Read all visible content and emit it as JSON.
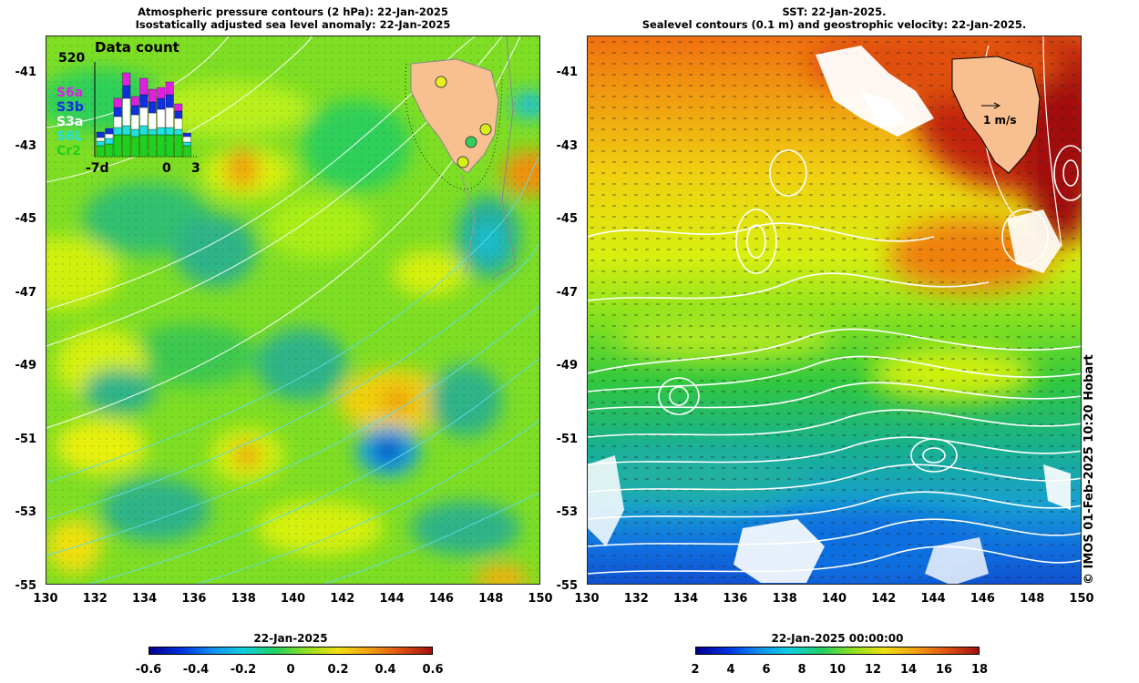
{
  "left_panel": {
    "title_line1": "Atmospheric pressure contours (2 hPa): 22-Jan-2025",
    "title_line2": "Isostatically adjusted sea level anomaly: 22-Jan-2025",
    "y_ticks": [
      "-41",
      "-43",
      "-45",
      "-47",
      "-49",
      "-51",
      "-53",
      "-55"
    ],
    "x_ticks": [
      "130",
      "132",
      "134",
      "136",
      "138",
      "140",
      "142",
      "144",
      "146",
      "148",
      "150"
    ],
    "inset": {
      "title": "Data count",
      "max_label": "520",
      "legend": [
        {
          "label": "S6a",
          "color": "#e020e0"
        },
        {
          "label": "S3b",
          "color": "#1030e0"
        },
        {
          "label": "S3a",
          "color": "#ffffff"
        },
        {
          "label": "S6L",
          "color": "#20e0e0"
        },
        {
          "label": "Cr2",
          "color": "#20d020"
        }
      ],
      "x_labels": [
        "-7d",
        "0",
        "3"
      ]
    },
    "colorbar": {
      "title": "22-Jan-2025",
      "ticks": [
        "-0.6",
        "-0.4",
        "-0.2",
        "0",
        "0.2",
        "0.4",
        "0.6"
      ]
    }
  },
  "right_panel": {
    "title_line1": "SST: 22-Jan-2025.",
    "title_line2": "Sealevel contours (0.1 m) and geostrophic velocity: 22-Jan-2025.",
    "y_ticks": [
      "-41",
      "-43",
      "-45",
      "-47",
      "-49",
      "-51",
      "-53",
      "-55"
    ],
    "x_ticks": [
      "130",
      "132",
      "134",
      "136",
      "138",
      "140",
      "142",
      "144",
      "146",
      "148",
      "150"
    ],
    "scale_label": "1 m/s",
    "colorbar": {
      "title": "22-Jan-2025 00:00:00",
      "ticks": [
        "2",
        "4",
        "6",
        "8",
        "10",
        "12",
        "14",
        "16",
        "18"
      ]
    }
  },
  "credit": "© IMOS 01-Feb-2025 10:20 Hobart"
}
